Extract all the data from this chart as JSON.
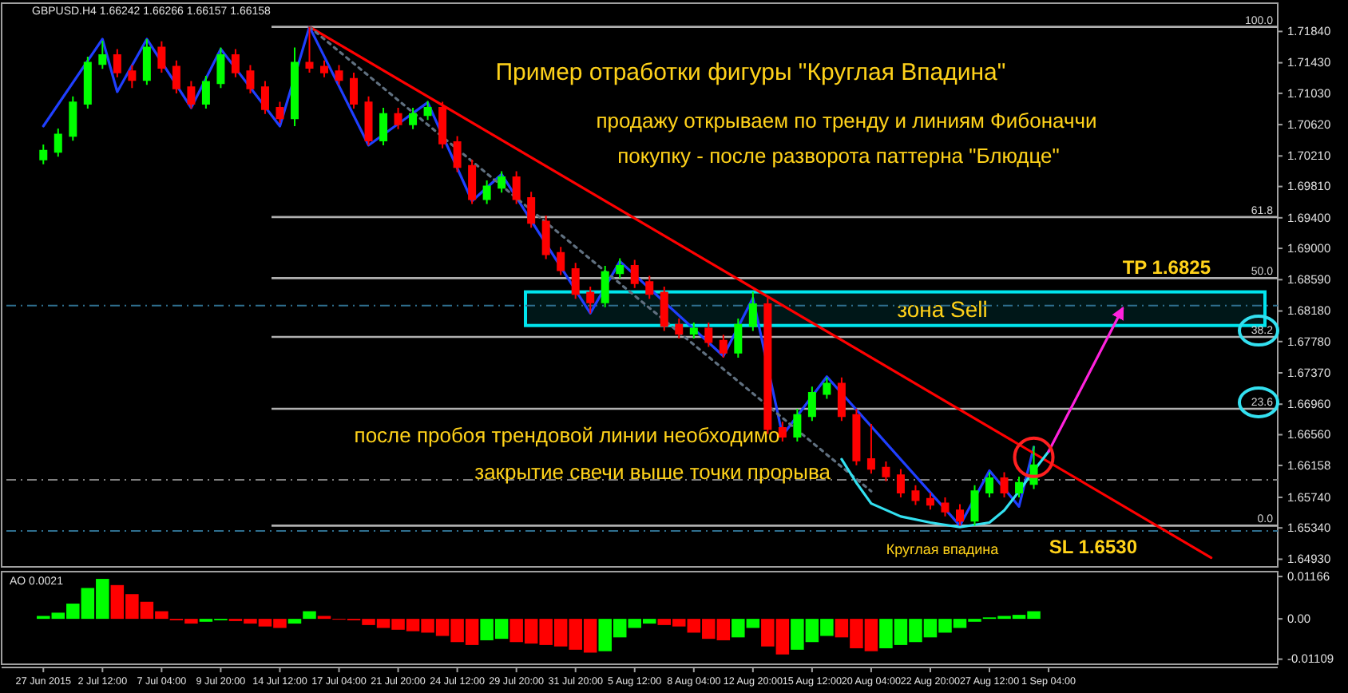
{
  "chart_data": [
    {
      "type": "candlestick",
      "title": "Пример отработки фигуры \"Круглая Впадина\"",
      "categories": [
        null,
        null,
        null,
        null,
        null,
        null,
        null,
        null,
        null,
        null,
        null,
        null,
        null,
        null,
        null,
        null,
        null,
        null,
        null,
        null,
        null,
        null,
        null,
        null,
        null,
        null,
        null,
        null,
        null,
        null,
        null,
        null,
        null,
        null,
        null,
        null,
        null,
        null,
        null,
        null,
        null,
        null,
        null,
        null,
        null,
        null,
        null,
        null,
        null,
        null,
        null,
        null,
        null,
        null,
        null,
        null,
        null,
        null,
        null,
        null,
        null,
        null,
        null,
        null,
        null,
        null,
        null,
        null,
        null,
        null,
        null,
        null,
        null,
        null,
        null,
        null,
        null,
        null,
        null,
        null,
        null,
        null,
        null
      ],
      "ohlc": [
        [
          1.7018,
          1.7036,
          1.701,
          1.7028
        ],
        [
          1.7028,
          1.7057,
          1.702,
          1.7049
        ],
        [
          1.7049,
          1.7099,
          1.7041,
          1.7091
        ],
        [
          1.7091,
          1.7151,
          1.7083,
          1.7143
        ],
        [
          1.7143,
          1.7172,
          1.7135,
          1.7153
        ],
        [
          1.7153,
          1.7161,
          1.7124,
          1.7132
        ],
        [
          1.7132,
          1.714,
          1.711,
          1.7122
        ],
        [
          1.7122,
          1.7174,
          1.7114,
          1.7163
        ],
        [
          1.7163,
          1.7171,
          1.713,
          1.7138
        ],
        [
          1.7138,
          1.7146,
          1.7103,
          1.7111
        ],
        [
          1.7111,
          1.7119,
          1.7083,
          1.7091
        ],
        [
          1.7091,
          1.7126,
          1.7083,
          1.7118
        ],
        [
          1.7118,
          1.7163,
          1.711,
          1.7153
        ],
        [
          1.7153,
          1.7161,
          1.7124,
          1.7132
        ],
        [
          1.7132,
          1.714,
          1.7103,
          1.7111
        ],
        [
          1.7111,
          1.7119,
          1.7076,
          1.7084
        ],
        [
          1.7084,
          1.7092,
          1.7064,
          1.7072
        ],
        [
          1.7072,
          1.7163,
          1.706,
          1.7143
        ],
        [
          1.7143,
          1.719,
          1.713,
          1.7138
        ],
        [
          1.7138,
          1.7146,
          1.7124,
          1.7132
        ],
        [
          1.7132,
          1.714,
          1.7114,
          1.7122
        ],
        [
          1.7122,
          1.713,
          1.7083,
          1.7091
        ],
        [
          1.7091,
          1.7099,
          1.7035,
          1.7043
        ],
        [
          1.7043,
          1.7084,
          1.7035,
          1.7076
        ],
        [
          1.7076,
          1.7084,
          1.7056,
          1.7064
        ],
        [
          1.7064,
          1.7084,
          1.7056,
          1.7076
        ],
        [
          1.7076,
          1.7093,
          1.7068,
          1.7084
        ],
        [
          1.7084,
          1.7092,
          1.7031,
          1.7039
        ],
        [
          1.7039,
          1.7047,
          1.7,
          1.7008
        ],
        [
          1.7008,
          1.7016,
          1.6958,
          1.6966
        ],
        [
          1.6966,
          1.6989,
          1.6958,
          1.6981
        ],
        [
          1.6981,
          1.7001,
          1.6973,
          1.6993
        ],
        [
          1.6993,
          1.7001,
          1.6958,
          1.6966
        ],
        [
          1.6966,
          1.6974,
          1.6927,
          1.6935
        ],
        [
          1.6935,
          1.6943,
          1.6886,
          1.6894
        ],
        [
          1.6894,
          1.6902,
          1.6865,
          1.6873
        ],
        [
          1.6873,
          1.6881,
          1.6834,
          1.6842
        ],
        [
          1.6842,
          1.685,
          1.6815,
          1.6831
        ],
        [
          1.6831,
          1.6877,
          1.6823,
          1.6869
        ],
        [
          1.6869,
          1.6887,
          1.6861,
          1.6877
        ],
        [
          1.6877,
          1.6885,
          1.6848,
          1.6856
        ],
        [
          1.6856,
          1.6864,
          1.6834,
          1.6842
        ],
        [
          1.6842,
          1.685,
          1.6792,
          1.68
        ],
        [
          1.68,
          1.6808,
          1.6782,
          1.679
        ],
        [
          1.679,
          1.6803,
          1.6782,
          1.6795
        ],
        [
          1.6795,
          1.6803,
          1.6771,
          1.6779
        ],
        [
          1.6779,
          1.6787,
          1.6757,
          1.6765
        ],
        [
          1.6765,
          1.6808,
          1.6757,
          1.68
        ],
        [
          1.68,
          1.6843,
          1.6792,
          1.6827
        ],
        [
          1.6827,
          1.6835,
          1.6657,
          1.6665
        ],
        [
          1.6665,
          1.6673,
          1.6647,
          1.6655
        ],
        [
          1.6655,
          1.669,
          1.6647,
          1.6682
        ],
        [
          1.6682,
          1.6719,
          1.6674,
          1.6711
        ],
        [
          1.6711,
          1.6731,
          1.6703,
          1.6723
        ],
        [
          1.6723,
          1.6731,
          1.6674,
          1.6682
        ],
        [
          1.6682,
          1.669,
          1.6616,
          1.6624
        ],
        [
          1.6624,
          1.667,
          1.6605,
          1.6613
        ],
        [
          1.6613,
          1.6621,
          1.6595,
          1.6603
        ],
        [
          1.6603,
          1.6611,
          1.6574,
          1.6582
        ],
        [
          1.6582,
          1.659,
          1.6564,
          1.6572
        ],
        [
          1.6572,
          1.658,
          1.6558,
          1.6566
        ],
        [
          1.6566,
          1.6574,
          1.6549,
          1.6557
        ],
        [
          1.6557,
          1.6565,
          1.6537,
          1.6545
        ],
        [
          1.6545,
          1.659,
          1.6537,
          1.6582
        ],
        [
          1.6582,
          1.6607,
          1.6574,
          1.6599
        ],
        [
          1.6599,
          1.6607,
          1.6574,
          1.6582
        ],
        [
          1.6582,
          1.6601,
          1.6574,
          1.6593
        ],
        [
          1.6593,
          1.6641,
          1.6585,
          1.6616
        ],
        null,
        null,
        null,
        null,
        null,
        null,
        null,
        null,
        null,
        null,
        null,
        null,
        null,
        null,
        null
      ],
      "series": [
        {
          "type": "line",
          "color": "#1f3fff",
          "values": [
            1.706,
            null,
            null,
            null,
            1.7174,
            1.7105,
            null,
            1.7174,
            null,
            null,
            1.7084,
            null,
            1.7161,
            null,
            null,
            null,
            1.706,
            null,
            1.719,
            null,
            null,
            null,
            1.7035,
            null,
            null,
            null,
            1.7091,
            null,
            null,
            1.6962,
            null,
            1.6997,
            null,
            null,
            null,
            null,
            null,
            1.6815,
            null,
            1.6883,
            null,
            null,
            null,
            null,
            null,
            null,
            1.6759,
            null,
            1.6835,
            null,
            1.6655,
            null,
            null,
            1.6732,
            null,
            null,
            null,
            null,
            null,
            null,
            null,
            null,
            1.6537,
            null,
            1.6609,
            null,
            1.6562,
            1.664,
            null,
            null,
            null,
            null,
            null,
            null,
            null,
            null,
            null,
            null,
            null,
            null,
            null,
            null,
            null
          ]
        },
        {
          "type": "line",
          "color": "#ff0000",
          "values": [
            null,
            null,
            null,
            null,
            null,
            null,
            null,
            null,
            null,
            null,
            null,
            null,
            null,
            null,
            null,
            null,
            null,
            null,
            1.719,
            null,
            null,
            null,
            null,
            null,
            null,
            null,
            null,
            null,
            null,
            null,
            null,
            null,
            null,
            null,
            null,
            null,
            null,
            null,
            null,
            null,
            null,
            null,
            null,
            null,
            null,
            null,
            null,
            null,
            null,
            null,
            null,
            null,
            null,
            null,
            null,
            null,
            null,
            null,
            null,
            null,
            null,
            null,
            null,
            null,
            null,
            null,
            null,
            null,
            null,
            null,
            null,
            null,
            null,
            null,
            null,
            null,
            null,
            null,
            null,
            1.6495,
            null,
            null,
            null
          ]
        },
        {
          "type": "line",
          "color": "#607080",
          "line_style": "dotted",
          "values": [
            null,
            null,
            null,
            null,
            null,
            null,
            null,
            null,
            null,
            null,
            null,
            null,
            null,
            null,
            null,
            null,
            null,
            null,
            1.719,
            null,
            null,
            null,
            null,
            null,
            null,
            null,
            null,
            null,
            null,
            null,
            null,
            null,
            null,
            null,
            null,
            null,
            null,
            null,
            null,
            null,
            null,
            null,
            null,
            null,
            null,
            null,
            null,
            null,
            null,
            null,
            null,
            null,
            null,
            null,
            null,
            null,
            1.6582,
            null,
            null,
            null,
            null,
            null,
            null,
            null,
            null,
            null,
            null,
            null,
            null,
            null,
            null,
            null,
            null,
            null,
            null,
            null,
            null,
            null,
            null,
            null,
            null,
            null,
            null
          ]
        },
        {
          "type": "line",
          "color": "#33e0f0",
          "values": [
            null,
            null,
            null,
            null,
            null,
            null,
            null,
            null,
            null,
            null,
            null,
            null,
            null,
            null,
            null,
            null,
            null,
            null,
            null,
            null,
            null,
            null,
            null,
            null,
            null,
            null,
            null,
            null,
            null,
            null,
            null,
            null,
            null,
            null,
            null,
            null,
            null,
            null,
            null,
            null,
            null,
            null,
            null,
            null,
            null,
            null,
            null,
            null,
            null,
            null,
            null,
            null,
            null,
            null,
            1.6624,
            1.6593,
            1.6566,
            null,
            1.6549,
            null,
            1.6541,
            null,
            1.6535,
            null,
            1.6541,
            1.6557,
            1.6582,
            1.6609,
            1.6634,
            null,
            null,
            null,
            null,
            null,
            null,
            null,
            null,
            null,
            null,
            null,
            null,
            null,
            null
          ]
        },
        {
          "type": "line",
          "color": "#ff22dd",
          "values": [
            null,
            null,
            null,
            null,
            null,
            null,
            null,
            null,
            null,
            null,
            null,
            null,
            null,
            null,
            null,
            null,
            null,
            null,
            null,
            null,
            null,
            null,
            null,
            null,
            null,
            null,
            null,
            null,
            null,
            null,
            null,
            null,
            null,
            null,
            null,
            null,
            null,
            null,
            null,
            null,
            null,
            null,
            null,
            null,
            null,
            null,
            null,
            null,
            null,
            null,
            null,
            null,
            null,
            null,
            null,
            null,
            null,
            null,
            null,
            null,
            null,
            null,
            null,
            null,
            null,
            null,
            null,
            null,
            1.6634,
            null,
            null,
            null,
            null,
            1.6821,
            null,
            null,
            null,
            null,
            null,
            null,
            null,
            null,
            null
          ]
        }
      ],
      "ylim": [
        1.6483,
        1.7221
      ],
      "yticks": [
        {
          "value": 1.7184,
          "label": "1.71840"
        },
        {
          "value": 1.7143,
          "label": "1.71430"
        },
        {
          "value": 1.7103,
          "label": "1.71030"
        },
        {
          "value": 1.7062,
          "label": "1.70620"
        },
        {
          "value": 1.7021,
          "label": "1.70210"
        },
        {
          "value": 1.6981,
          "label": "1.69810"
        },
        {
          "value": 1.694,
          "label": "1.69400"
        },
        {
          "value": 1.69,
          "label": "1.69000"
        },
        {
          "value": 1.6859,
          "label": "1.68590"
        },
        {
          "value": 1.6818,
          "label": "1.68180"
        },
        {
          "value": 1.6778,
          "label": "1.67780"
        },
        {
          "value": 1.6737,
          "label": "1.67370"
        },
        {
          "value": 1.6696,
          "label": "1.66960"
        },
        {
          "value": 1.6656,
          "label": "1.66560"
        },
        {
          "value": 1.66158,
          "label": "1.66158"
        },
        {
          "value": 1.6574,
          "label": "1.65740"
        },
        {
          "value": 1.6534,
          "label": "1.65340"
        },
        {
          "value": 1.6493,
          "label": "1.64930"
        }
      ],
      "tick_labels": "y",
      "ref_lines": [
        {
          "axis": "y",
          "value": 1.719,
          "color": "#b0b0b0"
        },
        {
          "axis": "y",
          "value": 1.6941,
          "color": "#b0b0b0"
        },
        {
          "axis": "y",
          "value": 1.6861,
          "color": "#b0b0b0"
        },
        {
          "axis": "y",
          "value": 1.6784,
          "color": "#b0b0b0"
        },
        {
          "axis": "y",
          "value": 1.669,
          "color": "#b0b0b0"
        },
        {
          "axis": "y",
          "value": 1.6537,
          "color": "#b0b0b0"
        },
        {
          "axis": "y",
          "value": 1.6825,
          "label": "TP 1.6825",
          "color": "#2f6f8f",
          "line_style": "dashed"
        },
        {
          "axis": "y",
          "value": 1.6597,
          "color": "#808080",
          "line_style": "dashed"
        },
        {
          "axis": "y",
          "value": 1.653,
          "label": "SL 1.6530",
          "color": "#2f6f8f",
          "line_style": "dashed"
        }
      ],
      "bands": [
        {
          "axis": "y",
          "from": 1.6799,
          "to": 1.6843,
          "label": "зона Sell",
          "color": "#00e5ee"
        }
      ],
      "annotations": [
        "GBPUSD.H4 1.66242 1.66266 1.66157 1.66158",
        "продажу открываем по тренду и линиям Фибоначчи",
        "покупку  -  после разворота паттерна \"Блюдце\"",
        "после пробоя трендовой линии необходимо",
        "закрытие свечи выше точки прорыва",
        "Круглая впадина",
        {
          "text": "100.0",
          "y": 1.719
        },
        {
          "text": "61.8",
          "y": 1.6941
        },
        {
          "text": "50.0",
          "y": 1.6861
        },
        {
          "text": "38.2",
          "y": 1.6784
        },
        {
          "text": "23.6",
          "y": 1.669
        },
        {
          "text": "0.0",
          "y": 1.6537
        }
      ]
    },
    {
      "type": "bar",
      "title": "AO 0.0021",
      "categories": [
        "27 Jun 2015",
        null,
        null,
        null,
        "2 Jul 12:00",
        null,
        null,
        null,
        "7 Jul 04:00",
        null,
        null,
        null,
        "9 Jul 20:00",
        null,
        null,
        null,
        "14 Jul 12:00",
        null,
        null,
        null,
        "17 Jul 04:00",
        null,
        null,
        null,
        "21 Jul 20:00",
        null,
        null,
        null,
        "24 Jul 12:00",
        null,
        null,
        null,
        "29 Jul 20:00",
        null,
        null,
        null,
        "31 Jul 20:00",
        null,
        null,
        null,
        "5 Aug 12:00",
        null,
        null,
        null,
        "8 Aug 04:00",
        null,
        null,
        null,
        "12 Aug 20:00",
        null,
        null,
        null,
        "15 Aug 12:00",
        null,
        null,
        null,
        "20 Aug 04:00",
        null,
        null,
        null,
        "22 Aug 20:00",
        null,
        null,
        null,
        "27 Aug 12:00",
        null,
        null,
        null,
        "1 Sep 04:00",
        null,
        null,
        null,
        null,
        null,
        null,
        null,
        null,
        null,
        null,
        null,
        null,
        null,
        null
      ],
      "values": [
        0.0008,
        0.0017,
        0.0042,
        0.0085,
        0.011,
        0.0093,
        0.0068,
        0.0047,
        0.0021,
        -0.0004,
        -0.0013,
        -0.0008,
        -0.0004,
        -0.0006,
        -0.0013,
        -0.0021,
        -0.0025,
        -0.0013,
        0.0021,
        0.0008,
        0,
        -0.0004,
        -0.0017,
        -0.0025,
        -0.003,
        -0.0034,
        -0.0038,
        -0.0047,
        -0.0064,
        -0.0072,
        -0.0059,
        -0.0055,
        -0.0064,
        -0.0068,
        -0.0072,
        -0.0076,
        -0.0085,
        -0.0093,
        -0.0089,
        -0.0051,
        -0.0025,
        -0.0013,
        -0.0017,
        -0.0021,
        -0.0038,
        -0.0055,
        -0.0059,
        -0.0051,
        -0.0025,
        -0.0076,
        -0.0098,
        -0.0085,
        -0.0064,
        -0.0047,
        -0.0051,
        -0.0081,
        -0.0089,
        -0.0081,
        -0.0072,
        -0.0064,
        -0.0051,
        -0.0038,
        -0.0025,
        -0.0008,
        0.0004,
        0.0008,
        0.0011,
        0.0021,
        null,
        null,
        null,
        null,
        null,
        null,
        null,
        null,
        null,
        null,
        null,
        null,
        null,
        null,
        null
      ],
      "colors": [
        "#00ff00",
        "#00ff00",
        "#00ff00",
        "#00ff00",
        "#00ff00",
        "#ff0000",
        "#ff0000",
        "#ff0000",
        "#ff0000",
        "#ff0000",
        "#ff0000",
        "#00ff00",
        "#00ff00",
        "#ff0000",
        "#ff0000",
        "#ff0000",
        "#ff0000",
        "#00ff00",
        "#00ff00",
        "#ff0000",
        "#ff0000",
        "#ff0000",
        "#ff0000",
        "#ff0000",
        "#ff0000",
        "#ff0000",
        "#ff0000",
        "#ff0000",
        "#ff0000",
        "#ff0000",
        "#00ff00",
        "#00ff00",
        "#ff0000",
        "#ff0000",
        "#ff0000",
        "#ff0000",
        "#ff0000",
        "#ff0000",
        "#00ff00",
        "#00ff00",
        "#00ff00",
        "#00ff00",
        "#ff0000",
        "#ff0000",
        "#ff0000",
        "#ff0000",
        "#ff0000",
        "#00ff00",
        "#00ff00",
        "#ff0000",
        "#ff0000",
        "#00ff00",
        "#00ff00",
        "#00ff00",
        "#ff0000",
        "#ff0000",
        "#ff0000",
        "#00ff00",
        "#00ff00",
        "#00ff00",
        "#00ff00",
        "#00ff00",
        "#00ff00",
        "#00ff00",
        "#00ff00",
        "#00ff00",
        "#00ff00",
        "#00ff00",
        null,
        null,
        null,
        null,
        null,
        null,
        null,
        null,
        null,
        null,
        null,
        null,
        null,
        null,
        null
      ],
      "ylim": [
        -0.0125,
        0.013
      ],
      "yticks": [
        0.01166,
        {
          "value": 0,
          "label": "0.00"
        },
        -0.01109
      ]
    }
  ]
}
